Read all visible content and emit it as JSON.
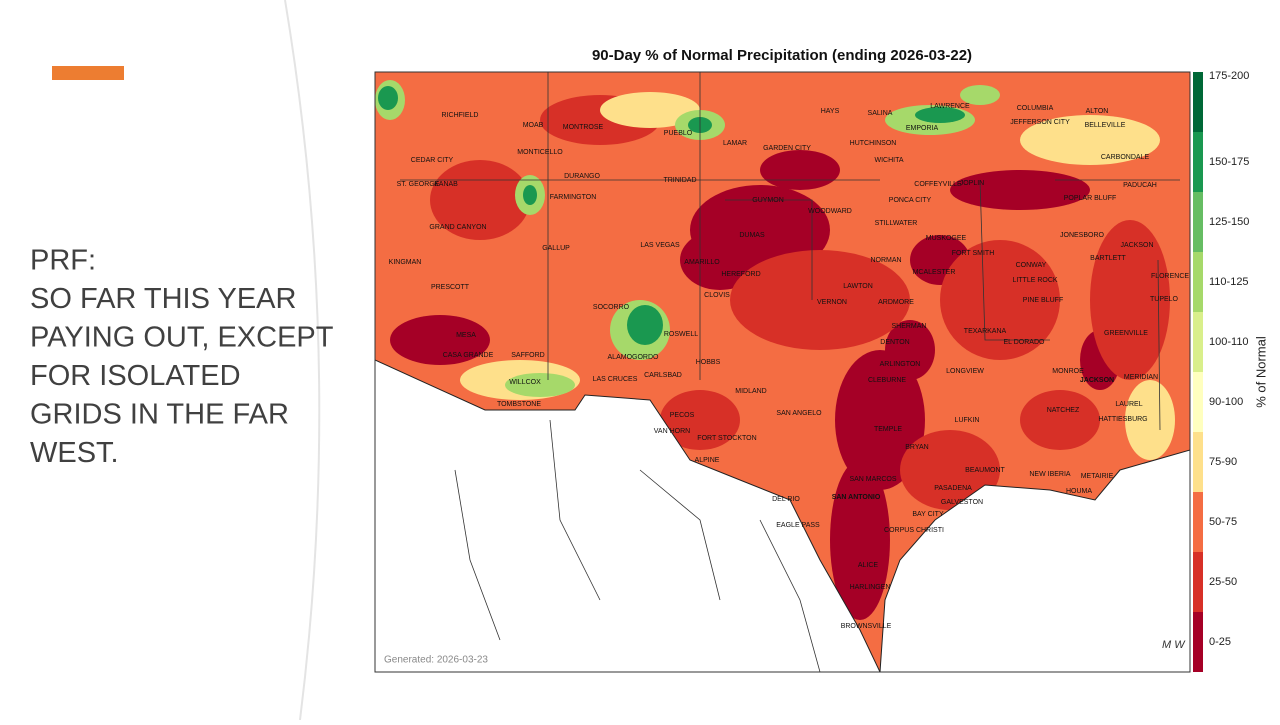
{
  "slide": {
    "lines": [
      "PRF:",
      "SO FAR THIS YEAR",
      "PAYING OUT, EXCEPT",
      "FOR ISOLATED",
      "GRIDS IN THE FAR",
      "WEST."
    ]
  },
  "map": {
    "title": "90-Day % of Normal Precipitation (ending 2026-03-22)",
    "legend_title": "% of Normal",
    "legend": {
      "labels": [
        "175-200",
        "150-175",
        "125-150",
        "110-125",
        "100-110",
        "90-100",
        "75-90",
        "50-75",
        "25-50",
        "0-25"
      ],
      "colors": [
        "#006837",
        "#1a9850",
        "#66bd63",
        "#a6d96a",
        "#d9ef8b",
        "#ffffbf",
        "#fee08b",
        "#f46d43",
        "#d73027",
        "#a50026"
      ]
    },
    "generated": "Generated: 2026-03-23",
    "cities": [
      "RICHFIELD",
      "MOAB",
      "MONTROSE",
      "PUEBLO",
      "LAMAR",
      "HAYS",
      "SALINA",
      "LAWRENCE",
      "COLUMBIA",
      "ALTON",
      "JEFFERSON CITY",
      "BELLEVILLE",
      "EMPORIA",
      "CEDAR CITY",
      "MONTICELLO",
      "GARDEN CITY",
      "HUTCHINSON",
      "WICHITA",
      "CARBONDALE",
      "DURANGO",
      "TRINIDAD",
      "ST. GEORGE",
      "KANAB",
      "COFFEYVILLE",
      "JOPLIN",
      "PADUCAH",
      "FARMINGTON",
      "GUYMON",
      "PONCA CITY",
      "POPLAR BLUFF",
      "WOODWARD",
      "DUMAS",
      "STILLWATER",
      "GRAND CANYON",
      "MUSKOGEE",
      "JONESBORO",
      "GALLUP",
      "LAS VEGAS",
      "JACKSON",
      "FORT SMITH",
      "KINGMAN",
      "AMARILLO",
      "NORMAN",
      "MCALESTER",
      "CONWAY",
      "BARTLETT",
      "LITTLE ROCK",
      "FLORENCE",
      "HEREFORD",
      "PRESCOTT",
      "CLOVIS",
      "LAWTON",
      "ARDMORE",
      "PINE BLUFF",
      "TUPELO",
      "VERNON",
      "SOCORRO",
      "ROSWELL",
      "SHERMAN",
      "TEXARKANA",
      "GREENVILLE",
      "MESA",
      "EL DORADO",
      "DENTON",
      "CASA GRANDE",
      "SAFFORD",
      "ALAMOGORDO",
      "HOBBS",
      "ARLINGTON",
      "MONROE",
      "JACKSON",
      "MERIDIAN",
      "LONGVIEW",
      "CLEBURNE",
      "LAS CRUCES",
      "CARLSBAD",
      "WILLCOX",
      "MIDLAND",
      "TOMBSTONE",
      "PECOS",
      "SAN ANGELO",
      "LAUREL",
      "NATCHEZ",
      "HATTIESBURG",
      "VAN HORN",
      "FORT STOCKTON",
      "TEMPLE",
      "LUFKIN",
      "BRYAN",
      "ALPINE",
      "BEAUMONT",
      "NEW IBERIA",
      "METAIRIE",
      "SAN MARCOS",
      "HOUMA",
      "SAN ANTONIO",
      "DEL RIO",
      "PASADENA",
      "GALVESTON",
      "EAGLE PASS",
      "BAY CITY",
      "CORPUS CHRISTI",
      "ALICE",
      "HARLINGEN",
      "BROWNSVILLE"
    ]
  }
}
